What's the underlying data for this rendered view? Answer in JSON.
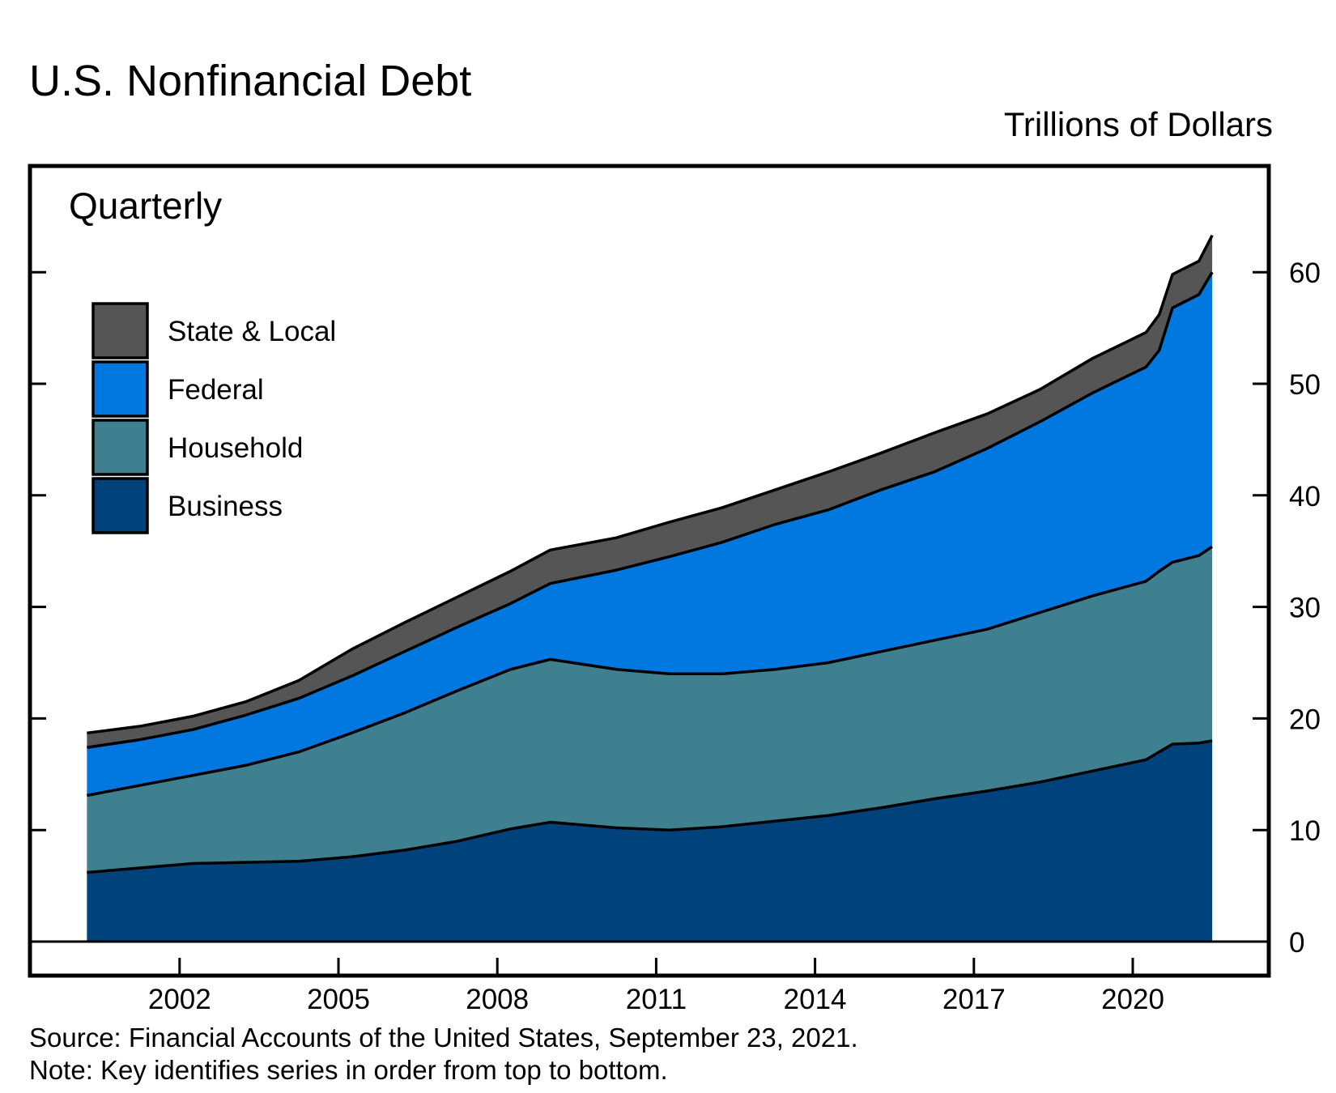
{
  "chart_data": {
    "type": "area",
    "stacked": true,
    "title": "U.S. Nonfinancial Debt",
    "ylabel": "Trillions of Dollars",
    "annotation": "Quarterly",
    "source": "Source: Financial Accounts of the United States, September 23, 2021.",
    "note": "Note: Key identifies series in order from top to bottom.",
    "ylim": [
      0,
      69
    ],
    "yticks": [
      0,
      10,
      20,
      30,
      40,
      50,
      60
    ],
    "ytick_labels": [
      "0",
      "10",
      "20",
      "30",
      "40",
      "50",
      "60"
    ],
    "xlim": [
      1999.2,
      2022.5
    ],
    "xticks": [
      2002,
      2005,
      2008,
      2011,
      2014,
      2017,
      2020
    ],
    "xtick_labels": [
      "2002",
      "2005",
      "2008",
      "2011",
      "2014",
      "2017",
      "2020"
    ],
    "legend_position": "top-left",
    "x": [
      "2000Q1",
      "2001Q1",
      "2002Q1",
      "2003Q1",
      "2004Q1",
      "2005Q1",
      "2006Q1",
      "2007Q1",
      "2008Q1",
      "2008Q4",
      "2010Q1",
      "2011Q1",
      "2012Q1",
      "2013Q1",
      "2014Q1",
      "2015Q1",
      "2016Q1",
      "2017Q1",
      "2018Q1",
      "2019Q1",
      "2020Q1",
      "2020Q2",
      "2020Q3",
      "2021Q1",
      "2021Q2"
    ],
    "series": [
      {
        "name": "Business",
        "color": "#00427b",
        "values": [
          6.2,
          6.6,
          7.0,
          7.1,
          7.2,
          7.6,
          8.2,
          9.0,
          10.1,
          10.7,
          10.2,
          10.0,
          10.3,
          10.8,
          11.3,
          12.0,
          12.8,
          13.5,
          14.3,
          15.3,
          16.3,
          17.0,
          17.7,
          17.8,
          18.0
        ]
      },
      {
        "name": "Household",
        "color": "#3f8090",
        "values": [
          6.9,
          7.4,
          7.9,
          8.7,
          9.8,
          11.1,
          12.3,
          13.5,
          14.3,
          14.6,
          14.2,
          14.0,
          13.7,
          13.6,
          13.7,
          14.0,
          14.2,
          14.5,
          15.2,
          15.7,
          16.0,
          16.2,
          16.3,
          16.8,
          17.4
        ]
      },
      {
        "name": "Federal",
        "color": "#0078e0",
        "values": [
          4.3,
          4.1,
          4.1,
          4.5,
          4.8,
          5.1,
          5.5,
          5.7,
          5.9,
          6.8,
          8.9,
          10.5,
          11.8,
          13.0,
          13.7,
          14.5,
          15.1,
          16.2,
          17.1,
          18.2,
          19.2,
          19.8,
          22.8,
          23.4,
          24.6
        ]
      },
      {
        "name": "State & Local",
        "color": "#555555",
        "values": [
          1.3,
          1.2,
          1.2,
          1.2,
          1.6,
          2.4,
          2.6,
          2.7,
          2.9,
          3.0,
          2.9,
          3.1,
          3.1,
          3.1,
          3.4,
          3.3,
          3.5,
          3.1,
          2.9,
          3.1,
          3.1,
          3.2,
          3.0,
          3.0,
          3.3
        ]
      }
    ],
    "legend": [
      "State & Local",
      "Federal",
      "Household",
      "Business"
    ]
  }
}
